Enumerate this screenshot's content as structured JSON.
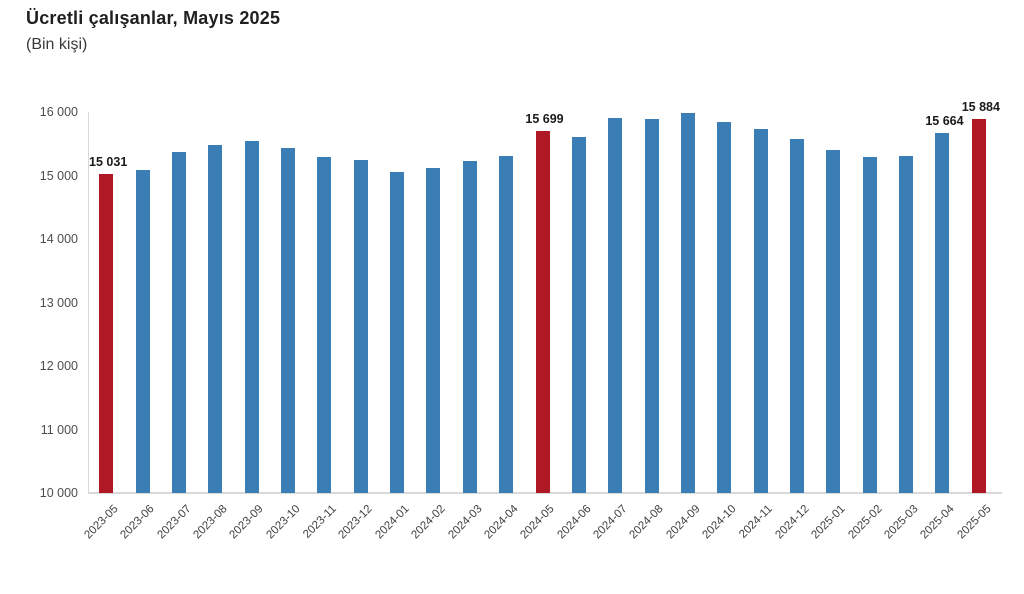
{
  "header": {
    "title": "Ücretli çalışanlar, Mayıs 2025",
    "subtitle": "(Bin kişi)"
  },
  "chart_data": {
    "type": "bar",
    "title": "Ücretli çalışanlar, Mayıs 2025",
    "subtitle": "(Bin kişi)",
    "xlabel": "",
    "ylabel": "Bin kişi",
    "ylim": [
      10000,
      16000
    ],
    "grid": false,
    "legend": "none",
    "y_ticks": [
      {
        "value": 16000,
        "label": "16 000"
      },
      {
        "value": 15000,
        "label": "15 000"
      },
      {
        "value": 14000,
        "label": "14 000"
      },
      {
        "value": 13000,
        "label": "13 000"
      },
      {
        "value": 12000,
        "label": "12 000"
      },
      {
        "value": 11000,
        "label": "11 000"
      },
      {
        "value": 10000,
        "label": "10 000"
      }
    ],
    "colors": {
      "bar": "#3b7db5",
      "highlight": "#b01923"
    },
    "points": [
      {
        "category": "2023-05",
        "value": 15031,
        "highlight": true,
        "value_label": "15 031"
      },
      {
        "category": "2023-06",
        "value": 15080,
        "highlight": false,
        "value_label": ""
      },
      {
        "category": "2023-07",
        "value": 15370,
        "highlight": false,
        "value_label": ""
      },
      {
        "category": "2023-08",
        "value": 15480,
        "highlight": false,
        "value_label": ""
      },
      {
        "category": "2023-09",
        "value": 15550,
        "highlight": false,
        "value_label": ""
      },
      {
        "category": "2023-10",
        "value": 15440,
        "highlight": false,
        "value_label": ""
      },
      {
        "category": "2023-11",
        "value": 15290,
        "highlight": false,
        "value_label": ""
      },
      {
        "category": "2023-12",
        "value": 15250,
        "highlight": false,
        "value_label": ""
      },
      {
        "category": "2024-01",
        "value": 15060,
        "highlight": false,
        "value_label": ""
      },
      {
        "category": "2024-02",
        "value": 15120,
        "highlight": false,
        "value_label": ""
      },
      {
        "category": "2024-03",
        "value": 15230,
        "highlight": false,
        "value_label": ""
      },
      {
        "category": "2024-04",
        "value": 15300,
        "highlight": false,
        "value_label": ""
      },
      {
        "category": "2024-05",
        "value": 15699,
        "highlight": true,
        "value_label": "15 699"
      },
      {
        "category": "2024-06",
        "value": 15600,
        "highlight": false,
        "value_label": ""
      },
      {
        "category": "2024-07",
        "value": 15900,
        "highlight": false,
        "value_label": ""
      },
      {
        "category": "2024-08",
        "value": 15890,
        "highlight": false,
        "value_label": ""
      },
      {
        "category": "2024-09",
        "value": 15980,
        "highlight": false,
        "value_label": ""
      },
      {
        "category": "2024-10",
        "value": 15850,
        "highlight": false,
        "value_label": ""
      },
      {
        "category": "2024-11",
        "value": 15740,
        "highlight": false,
        "value_label": ""
      },
      {
        "category": "2024-12",
        "value": 15580,
        "highlight": false,
        "value_label": ""
      },
      {
        "category": "2025-01",
        "value": 15400,
        "highlight": false,
        "value_label": ""
      },
      {
        "category": "2025-02",
        "value": 15290,
        "highlight": false,
        "value_label": ""
      },
      {
        "category": "2025-03",
        "value": 15310,
        "highlight": false,
        "value_label": ""
      },
      {
        "category": "2025-04",
        "value": 15664,
        "highlight": false,
        "value_label": "15 664"
      },
      {
        "category": "2025-05",
        "value": 15884,
        "highlight": true,
        "value_label": "15 884"
      }
    ]
  }
}
